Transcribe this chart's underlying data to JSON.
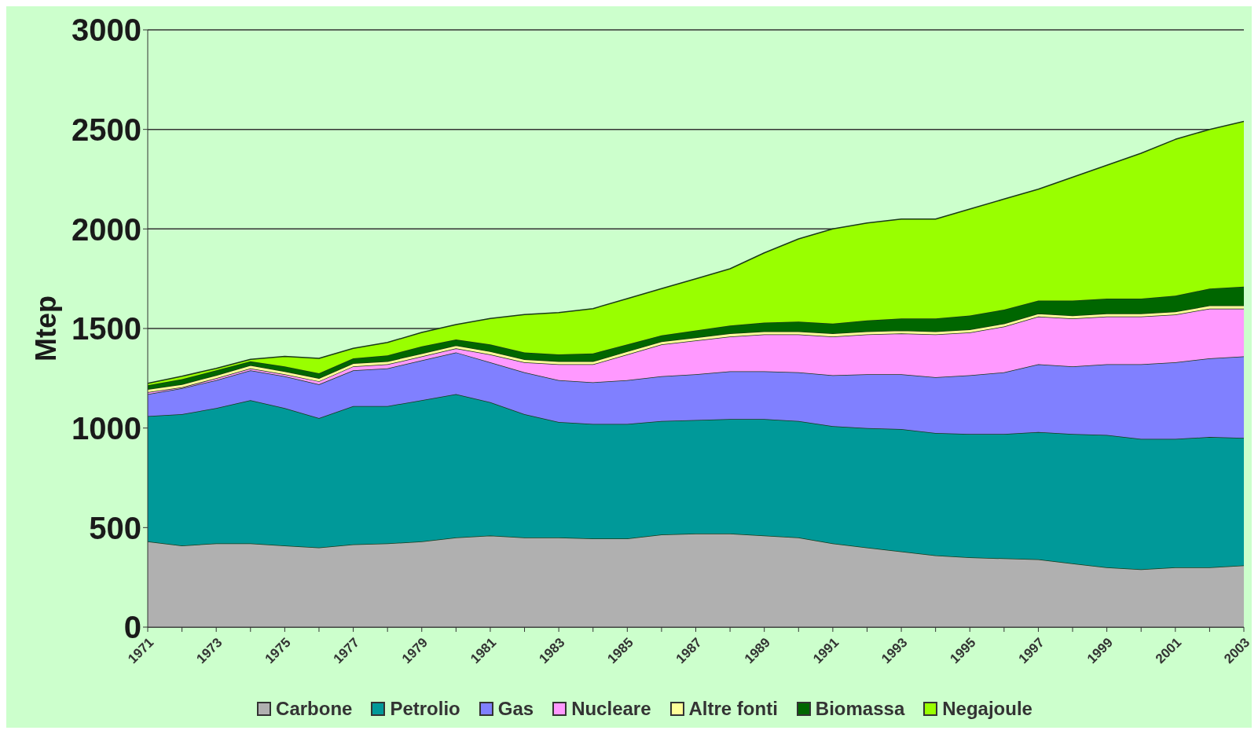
{
  "chart_data": {
    "type": "area",
    "stacked": true,
    "ylabel": "Mtep",
    "categories": [
      "1971",
      null,
      "1973",
      null,
      "1975",
      null,
      "1977",
      null,
      "1979",
      null,
      "1981",
      null,
      "1983",
      null,
      "1985",
      null,
      "1987",
      null,
      "1989",
      null,
      "1991",
      null,
      "1993",
      null,
      "1995",
      null,
      "1997",
      null,
      "1999",
      null,
      "2001",
      null,
      "2003"
    ],
    "series": [
      {
        "name": "Carbone",
        "color": "#b0b0b0",
        "values": [
          430,
          410,
          420,
          420,
          410,
          400,
          415,
          420,
          430,
          450,
          460,
          450,
          450,
          445,
          445,
          465,
          470,
          470,
          460,
          450,
          420,
          400,
          380,
          360,
          350,
          345,
          340,
          320,
          300,
          290,
          300,
          300,
          310
        ]
      },
      {
        "name": "Petrolio",
        "color": "#009999",
        "values": [
          630,
          660,
          680,
          720,
          690,
          650,
          695,
          690,
          710,
          720,
          670,
          620,
          580,
          575,
          575,
          570,
          570,
          575,
          585,
          585,
          590,
          600,
          615,
          615,
          620,
          625,
          640,
          650,
          665,
          655,
          645,
          655,
          640
        ]
      },
      {
        "name": "Gas",
        "color": "#8080ff",
        "values": [
          110,
          130,
          140,
          150,
          160,
          170,
          180,
          190,
          200,
          210,
          200,
          210,
          210,
          210,
          220,
          225,
          230,
          240,
          240,
          245,
          255,
          270,
          275,
          280,
          295,
          310,
          340,
          340,
          355,
          375,
          385,
          395,
          410
        ]
      },
      {
        "name": "Nucleare",
        "color": "#ff99ff",
        "values": [
          10,
          5,
          10,
          10,
          10,
          15,
          20,
          20,
          20,
          20,
          40,
          50,
          80,
          90,
          130,
          160,
          170,
          175,
          185,
          190,
          195,
          200,
          205,
          215,
          215,
          230,
          240,
          240,
          240,
          240,
          240,
          250,
          240
        ]
      },
      {
        "name": "Altre fonti",
        "color": "#ffff99",
        "values": [
          15,
          15,
          15,
          15,
          15,
          15,
          15,
          15,
          15,
          15,
          15,
          15,
          15,
          15,
          15,
          15,
          15,
          15,
          15,
          15,
          15,
          15,
          15,
          15,
          15,
          15,
          15,
          15,
          15,
          15,
          15,
          15,
          15
        ]
      },
      {
        "name": "Biomassa",
        "color": "#006600",
        "values": [
          20,
          25,
          25,
          20,
          25,
          25,
          25,
          30,
          35,
          30,
          35,
          35,
          35,
          40,
          35,
          30,
          35,
          40,
          45,
          50,
          50,
          55,
          60,
          65,
          70,
          70,
          65,
          75,
          75,
          75,
          80,
          85,
          95
        ]
      },
      {
        "name": "Negajoule",
        "color": "#99ff00",
        "values": [
          10,
          15,
          10,
          10,
          50,
          75,
          50,
          65,
          70,
          75,
          130,
          190,
          210,
          225,
          230,
          235,
          260,
          285,
          350,
          415,
          475,
          490,
          500,
          500,
          535,
          555,
          560,
          620,
          670,
          730,
          785,
          800,
          830
        ]
      }
    ],
    "ylim": [
      0,
      3000
    ],
    "yticks": [
      0,
      500,
      1000,
      1500,
      2000,
      2500,
      3000
    ],
    "grid": "y",
    "legend": "bottom",
    "marker": "none"
  }
}
